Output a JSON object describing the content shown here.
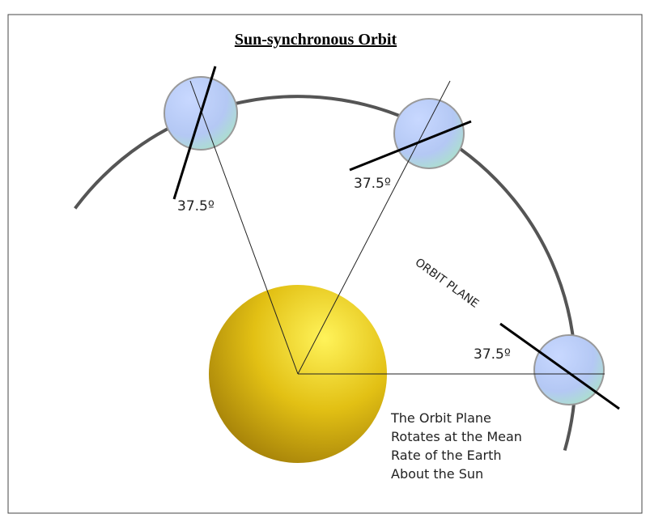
{
  "title": "Sun-synchronous Orbit",
  "angle_labels": [
    "37.5º",
    "37.5º",
    "37.5º"
  ],
  "orbit_label": "ORBIT PLANE",
  "caption": [
    "The Orbit Plane",
    "Rotates at the Mean",
    "Rate of the Earth",
    "About the Sun"
  ]
}
